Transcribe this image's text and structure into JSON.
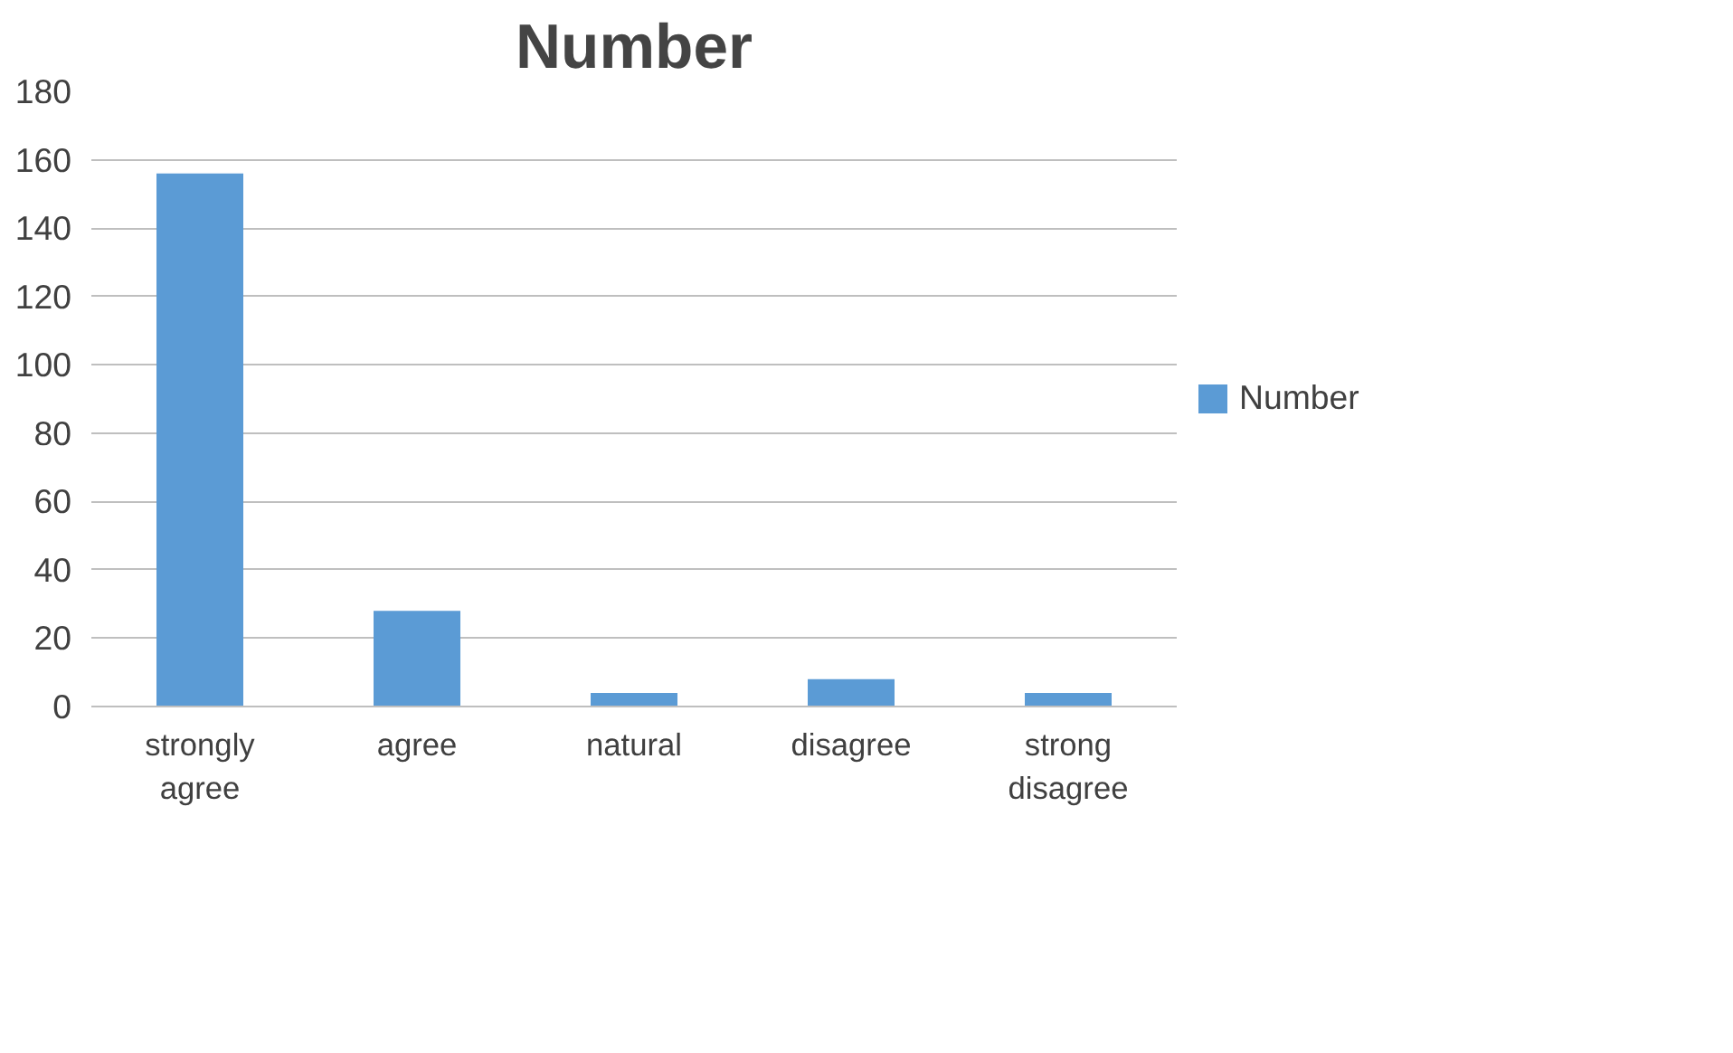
{
  "chart_data": {
    "type": "bar",
    "title": "Number",
    "categories": [
      "strongly agree",
      "agree",
      "natural",
      "disagree",
      "strong disagree"
    ],
    "series": [
      {
        "name": "Number",
        "color": "#5b9bd5",
        "values": [
          156,
          28,
          4,
          8,
          4
        ]
      }
    ],
    "ylim": [
      0,
      180
    ],
    "yticks": [
      0,
      20,
      40,
      60,
      80,
      100,
      120,
      140,
      160,
      180
    ],
    "grid": "y",
    "legend": "right"
  }
}
